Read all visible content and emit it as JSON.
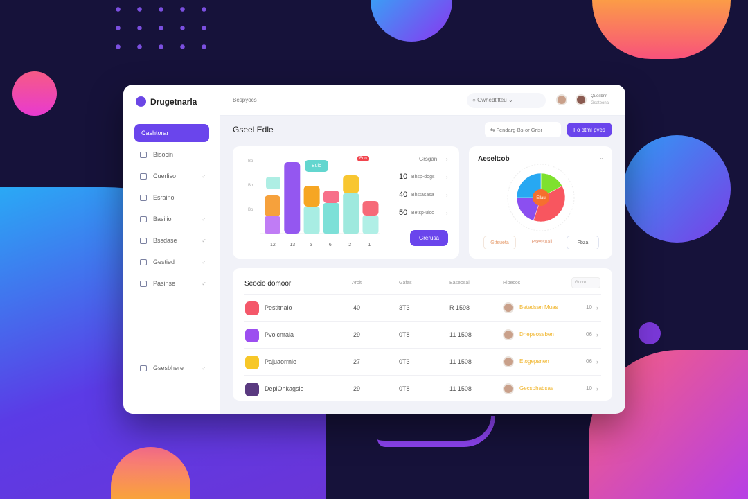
{
  "brand": {
    "name": "Drugetnarla"
  },
  "header": {
    "breadcrumb": "Bespyocs",
    "search": "Gwhedtifteu",
    "user_name": "Quesbnr",
    "user_role": "Gsatbonal"
  },
  "sidebar": {
    "items": [
      {
        "label": "Cashtorar",
        "active": true
      },
      {
        "label": "Bisocin"
      },
      {
        "label": "Cuerliso"
      },
      {
        "label": "Esraino"
      },
      {
        "label": "Basilio"
      },
      {
        "label": "Bssdase"
      },
      {
        "label": "Gestied"
      },
      {
        "label": "Pasinse"
      }
    ],
    "footer": "Gsesbhere"
  },
  "main": {
    "title": "Gseel Edle",
    "filter_label": "Fendarg-Bs-or Grisr",
    "primary_label": "Fo dtml pves"
  },
  "bar_panel": {
    "badge": "Bulo",
    "red_badge": "Edo",
    "y_ticks": [
      "Bo",
      "Bo",
      "Bo"
    ],
    "x_ticks": [
      "12",
      "13",
      "6",
      "6",
      "2",
      "1"
    ],
    "link": "Grsgan",
    "stats": [
      {
        "value": "10",
        "label": "Bhsp-dogs"
      },
      {
        "value": "40",
        "label": "Bhstasasa"
      },
      {
        "value": "50",
        "label": "Betsp-uico"
      }
    ],
    "button": "Grerusa",
    "bars": [
      [
        {
          "v": 25,
          "c": "#c07cf5"
        },
        {
          "v": 30,
          "c": "#f6a13c"
        }
      ],
      [
        {
          "v": 103,
          "c": "#9457f0"
        }
      ],
      [
        {
          "v": 39,
          "c": "#a8ede3"
        },
        {
          "v": 30,
          "c": "#f6a623"
        }
      ],
      [
        {
          "v": 44,
          "c": "#7de0d8"
        },
        {
          "v": 18,
          "c": "#f7708a"
        }
      ],
      [
        {
          "v": 58,
          "c": "#9ee9de"
        },
        {
          "v": 26,
          "c": "#f8c630"
        }
      ],
      [
        {
          "v": 26,
          "c": "#b0efe6"
        },
        {
          "v": 21,
          "c": "#f66a78"
        }
      ]
    ]
  },
  "pie_panel": {
    "title": "Aeselt:ob",
    "center": "Ellau",
    "tabs": [
      "Gttsueta",
      "Psessuaii",
      "Fbza"
    ],
    "slices": [
      {
        "v": 17,
        "c": "#7ee12e"
      },
      {
        "v": 38,
        "c": "#f8565f"
      },
      {
        "v": 20,
        "c": "#8b4ff0"
      },
      {
        "v": 25,
        "c": "#27a8f2"
      }
    ]
  },
  "table": {
    "title": "Seocio domoor",
    "headers": [
      "Arcit",
      "Gafas",
      "Easeosal",
      "Hibecos"
    ],
    "filter": "Gucre",
    "rows": [
      {
        "name": "Pestitnaio",
        "a": "40",
        "b": "3T3",
        "c": "R 1598",
        "person": "Betedsen Muas",
        "n": "10",
        "color": "#f4586a"
      },
      {
        "name": "Pvolcnraia",
        "a": "29",
        "b": "0T8",
        "c": "11 1508",
        "person": "Dnepeoseben",
        "n": "06",
        "color": "#9c4ef0"
      },
      {
        "name": "Pajuaorrnie",
        "a": "27",
        "b": "0T3",
        "c": "11 1508",
        "person": "Etogepsnen",
        "n": "06",
        "color": "#f7c728"
      },
      {
        "name": "DeplOhkagsie",
        "a": "29",
        "b": "0T8",
        "c": "11 1508",
        "person": "Gecsohabsae",
        "n": "10",
        "color": "#5a3a80"
      }
    ]
  }
}
